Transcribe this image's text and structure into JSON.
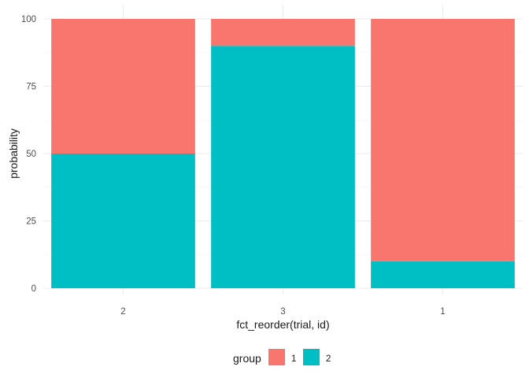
{
  "chart_data": {
    "type": "bar",
    "stacked": true,
    "categories": [
      "2",
      "3",
      "1"
    ],
    "series": [
      {
        "name": "1",
        "color": "#F8766D",
        "values": [
          50,
          10,
          90
        ]
      },
      {
        "name": "2",
        "color": "#00BFC4",
        "values": [
          50,
          90,
          10
        ]
      }
    ],
    "xlabel": "fct_reorder(trial, id)",
    "ylabel": "probability",
    "ylim": [
      0,
      100
    ],
    "yticks": [
      0,
      25,
      50,
      75,
      100
    ],
    "grid": true,
    "legend": {
      "title": "group",
      "position": "bottom"
    }
  }
}
